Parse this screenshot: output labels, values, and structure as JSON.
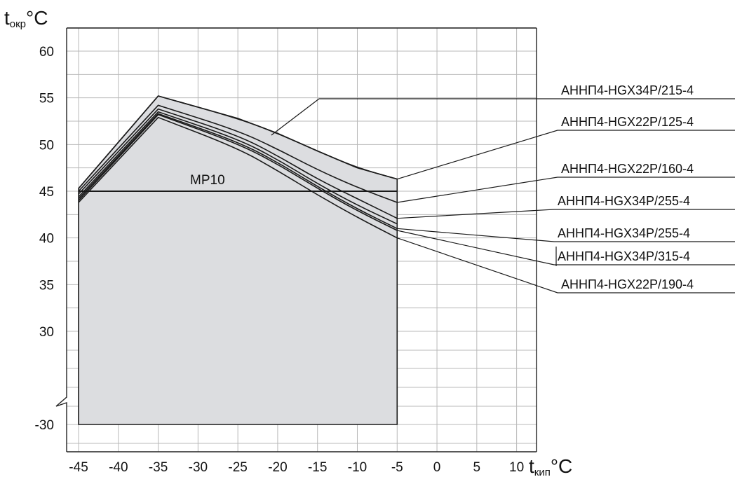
{
  "chart_data": {
    "type": "area",
    "x_axis": {
      "label_main": "t",
      "label_sub": "кип",
      "label_unit": "°C",
      "ticks": [
        -45,
        -40,
        -35,
        -30,
        -25,
        -20,
        -15,
        -10,
        -5,
        0,
        5,
        10
      ],
      "tick_labels": [
        "-45",
        "-40",
        "-35",
        "-30",
        "-25",
        "-20",
        "-15",
        "-10",
        "-5",
        "0",
        "5",
        "10"
      ],
      "xlim": [
        -46.5,
        12.5
      ]
    },
    "y_axis": {
      "label_main": "t",
      "label_sub": "окр",
      "label_unit": "°C",
      "ticks": [
        -30,
        30,
        35,
        40,
        45,
        50,
        55,
        60
      ],
      "tick_labels": [
        "-30",
        "30",
        "35",
        "40",
        "45",
        "50",
        "55",
        "60"
      ],
      "broken_axis": true,
      "break_between": [
        -30,
        30
      ]
    },
    "grid": true,
    "envelope_bottom_y": -30,
    "envelope_x_range": [
      -45,
      -5
    ],
    "series": [
      {
        "name": "АННП4-HGX34P/215-4",
        "x": [
          -45,
          -35,
          -25,
          -20,
          -15,
          -10,
          -5
        ],
        "y": [
          45.3,
          55.2,
          52.8,
          51.2,
          49.3,
          47.5,
          46.3
        ]
      },
      {
        "name": "АННП4-HGX22P/125-4",
        "x": [
          -45,
          -35,
          -25,
          -20,
          -15,
          -10,
          -5
        ],
        "y": [
          45.0,
          54.2,
          51.5,
          49.5,
          47.3,
          45.4,
          43.8
        ]
      },
      {
        "name": "АННП4-HGX22P/160-4",
        "x": [
          -45,
          -35,
          -25,
          -20,
          -15,
          -10,
          -5
        ],
        "y": [
          44.7,
          53.8,
          51.0,
          48.8,
          46.3,
          44.2,
          42.1
        ]
      },
      {
        "name": "АННП4-HGX34P/255-4",
        "x": [
          -45,
          -35,
          -25,
          -20,
          -15,
          -10,
          -5
        ],
        "y": [
          44.4,
          53.5,
          50.6,
          48.4,
          45.8,
          43.5,
          41.5
        ]
      },
      {
        "name": "АННП4-HGX34P/255-4",
        "x": [
          -45,
          -35,
          -25,
          -20,
          -15,
          -10,
          -5
        ],
        "y": [
          44.2,
          53.3,
          50.3,
          48.1,
          45.5,
          43.1,
          41.0
        ]
      },
      {
        "name": "АННП4-HGX34P/315-4",
        "x": [
          -45,
          -35,
          -25,
          -20,
          -15,
          -10,
          -5
        ],
        "y": [
          44.0,
          53.2,
          50.1,
          47.9,
          45.3,
          42.9,
          40.8
        ]
      },
      {
        "name": "АННП4-HGX22P/190-4",
        "x": [
          -45,
          -35,
          -25,
          -20,
          -15,
          -10,
          -5
        ],
        "y": [
          43.8,
          52.9,
          49.6,
          47.2,
          44.6,
          42.2,
          40.0
        ]
      }
    ],
    "mp10": {
      "label": "MP10",
      "x": [
        -45,
        -5
      ],
      "y": 45
    },
    "colors": {
      "fill": "#dcdde0",
      "line": "#1a1a1a",
      "grid": "#b8b8b8",
      "frame": "#222222"
    }
  }
}
